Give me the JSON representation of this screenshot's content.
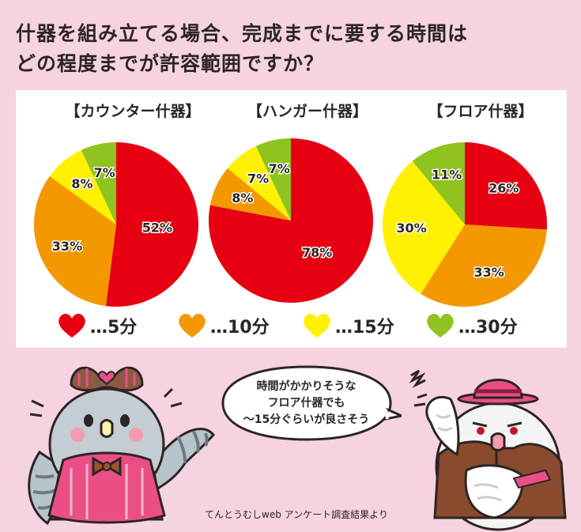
{
  "title": {
    "line1": "什器を組み立てる場合、完成までに要する時間は",
    "line2": "どの程度までが許容範囲ですか？"
  },
  "chart_data": {
    "type": "pie",
    "legend": [
      "…5分",
      "…10分",
      "…15分",
      "…30分"
    ],
    "colors": [
      "#e60012",
      "#f39800",
      "#fff100",
      "#8fc31f"
    ],
    "charts": [
      {
        "title": "【カウンター什器】",
        "values": [
          52,
          33,
          8,
          7
        ],
        "labels": [
          "52%",
          "33%",
          "8%",
          "7%"
        ]
      },
      {
        "title": "【ハンガー什器】",
        "values": [
          78,
          8,
          7,
          7
        ],
        "labels": [
          "78%",
          "8%",
          "7%",
          "7%"
        ]
      },
      {
        "title": "【フロア什器】",
        "values": [
          26,
          33,
          30,
          11
        ],
        "labels": [
          "26%",
          "33%",
          "30%",
          "11%"
        ]
      }
    ]
  },
  "bubble": {
    "line1": "時間がかかりそうな",
    "line2": "フロア什器でも",
    "line3": "～15分ぐらいが良さそう"
  },
  "source": "てんとうむしweb アンケート調査結果より"
}
